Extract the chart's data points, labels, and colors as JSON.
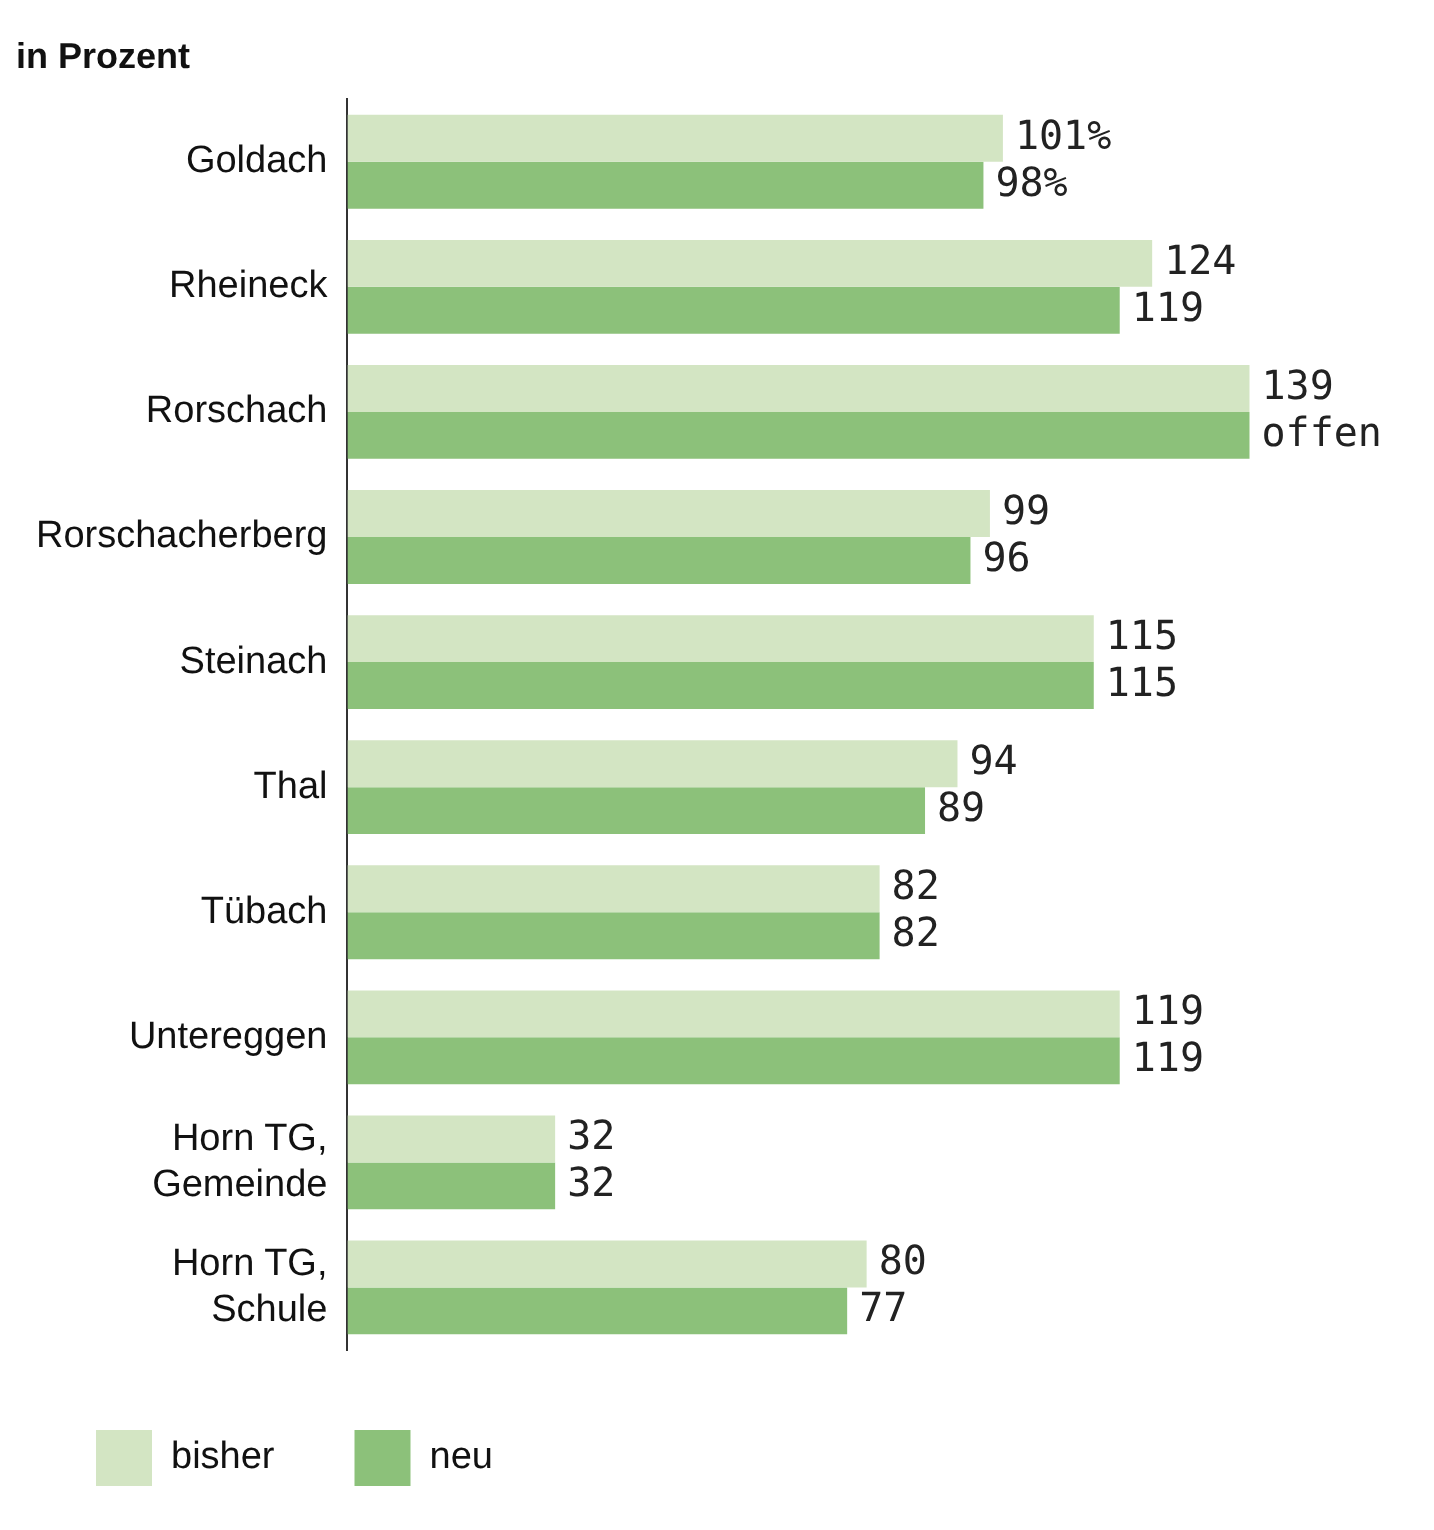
{
  "chart_data": {
    "type": "bar",
    "orientation": "horizontal",
    "title": "in Prozent",
    "categories": [
      "Goldach",
      "Rheineck",
      "Rorschach",
      "Rorschacherberg",
      "Steinach",
      "Thal",
      "Tübach",
      "Untereggen",
      "Horn TG,\nGemeinde",
      "Horn TG,\nSchule"
    ],
    "series": [
      {
        "name": "bisher",
        "color": "#d3e5c3",
        "values": [
          101,
          124,
          139,
          99,
          115,
          94,
          82,
          119,
          32,
          80
        ],
        "value_labels": [
          "101%",
          "124",
          "139",
          "99",
          "115",
          "94",
          "82",
          "119",
          "32",
          "80"
        ]
      },
      {
        "name": "neu",
        "color": "#8cc17a",
        "values": [
          98,
          119,
          139,
          96,
          115,
          89,
          82,
          119,
          32,
          77
        ],
        "value_labels": [
          "98%",
          "119",
          "offen",
          "96",
          "115",
          "89",
          "82",
          "119",
          "32",
          "77"
        ]
      }
    ],
    "legend": "bottom",
    "grid": false
  }
}
